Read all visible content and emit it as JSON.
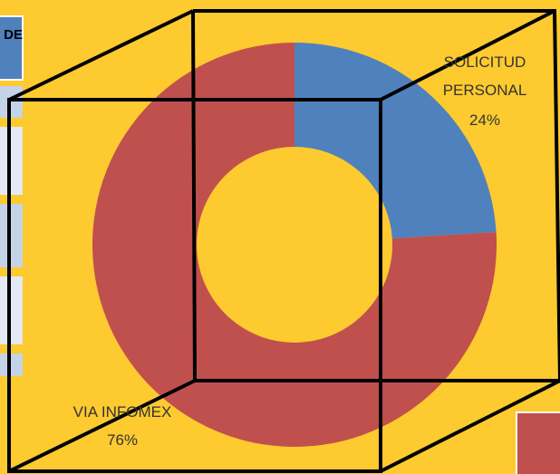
{
  "chart_data": {
    "type": "donut",
    "categories": [
      "SOLICITUD PERSONAL",
      "VIA INFOMEX"
    ],
    "values": [
      24,
      76
    ],
    "value_labels": [
      "24%",
      "76%"
    ],
    "colors": [
      "#4f81bd",
      "#c0504d"
    ]
  },
  "table": {
    "header": "DE"
  }
}
